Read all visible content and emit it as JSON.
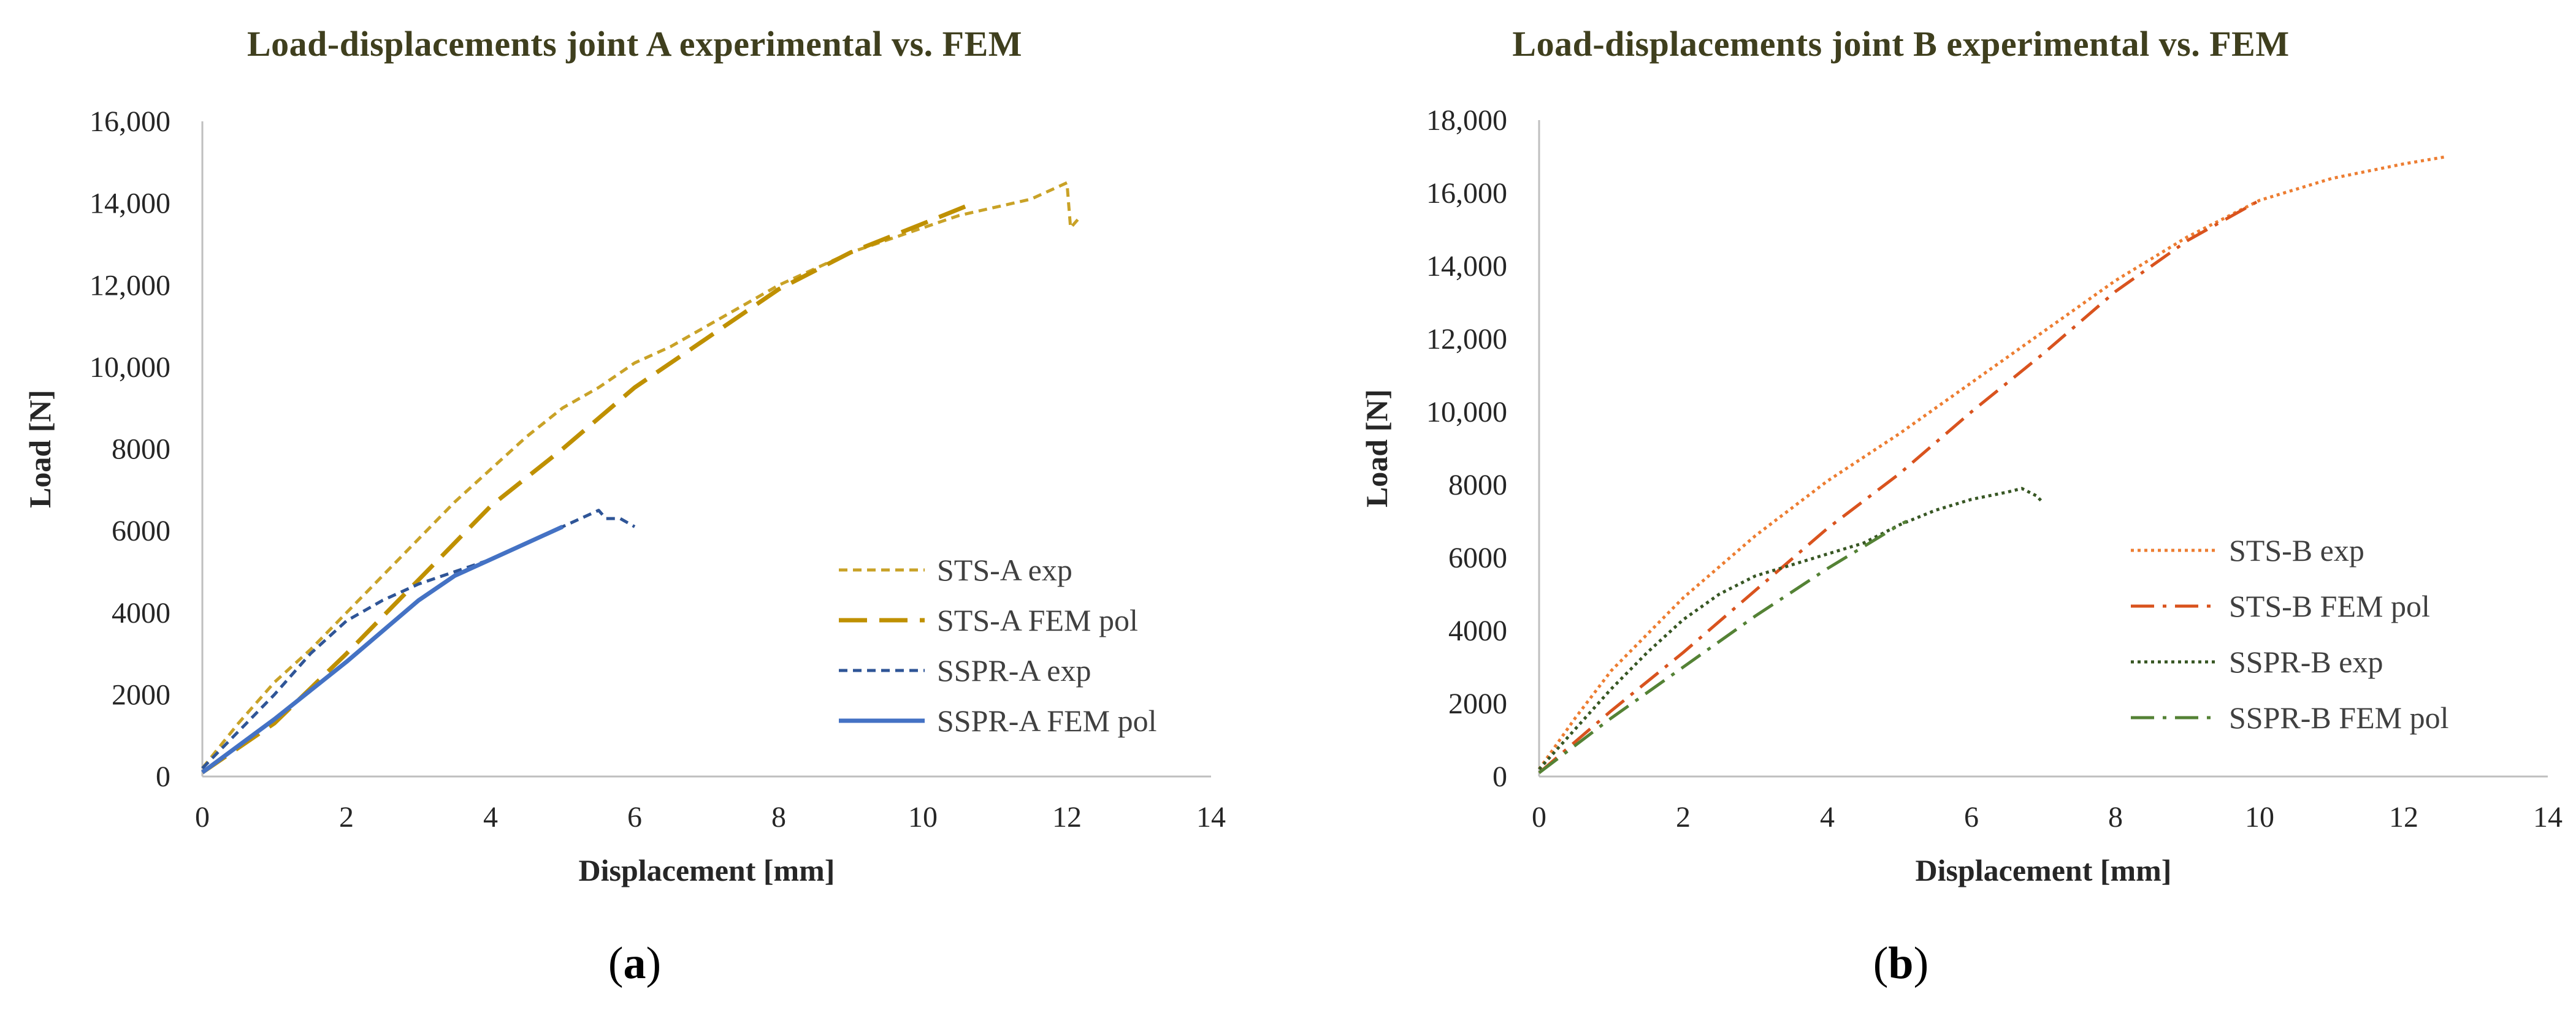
{
  "chart_data": [
    {
      "type": "line",
      "title": "Load-displacements  joint  A experimental  vs. FEM",
      "xlabel": "Displacement [mm]",
      "ylabel": "Load [N]",
      "xlim": [
        0,
        14
      ],
      "ylim": [
        0,
        16000
      ],
      "x_ticks": [
        0,
        2,
        4,
        6,
        8,
        10,
        12,
        14
      ],
      "x_tick_labels": [
        "0",
        "2",
        "4",
        "6",
        "8",
        "10",
        "12",
        "14"
      ],
      "y_ticks": [
        0,
        2000,
        4000,
        6000,
        8000,
        10000,
        12000,
        14000,
        16000
      ],
      "y_tick_labels": [
        "0",
        "2000",
        "4000",
        "6000",
        "8000",
        "10,000",
        "12,000",
        "14,000",
        "16,000"
      ],
      "grid": false,
      "legend_position": "right",
      "caption_label": "a",
      "series": [
        {
          "name": "STS-A exp",
          "color": "#c9a227",
          "style": "short-dash",
          "points": [
            [
              0,
              200
            ],
            [
              0.5,
              1300
            ],
            [
              1,
              2300
            ],
            [
              1.5,
              3100
            ],
            [
              2,
              4000
            ],
            [
              2.5,
              4900
            ],
            [
              3,
              5800
            ],
            [
              3.5,
              6700
            ],
            [
              4,
              7500
            ],
            [
              4.5,
              8300
            ],
            [
              5,
              9000
            ],
            [
              5.5,
              9500
            ],
            [
              6,
              10100
            ],
            [
              6.5,
              10500
            ],
            [
              7,
              11000
            ],
            [
              7.5,
              11500
            ],
            [
              8,
              12000
            ],
            [
              8.5,
              12400
            ],
            [
              9,
              12800
            ],
            [
              9.5,
              13100
            ],
            [
              10,
              13400
            ],
            [
              10.5,
              13700
            ],
            [
              11,
              13900
            ],
            [
              11.5,
              14100
            ],
            [
              12,
              14500
            ],
            [
              12.05,
              13400
            ],
            [
              12.15,
              13600
            ]
          ]
        },
        {
          "name": "STS-A FEM pol",
          "color": "#bf9000",
          "style": "long-dash",
          "points": [
            [
              0,
              100
            ],
            [
              1,
              1300
            ],
            [
              2,
              3000
            ],
            [
              3,
              4800
            ],
            [
              4,
              6600
            ],
            [
              5,
              8000
            ],
            [
              6,
              9500
            ],
            [
              7,
              10700
            ],
            [
              8,
              11900
            ],
            [
              9,
              12800
            ],
            [
              10,
              13500
            ],
            [
              10.7,
              14000
            ]
          ]
        },
        {
          "name": "SSPR-A exp",
          "color": "#2f5597",
          "style": "short-dash",
          "points": [
            [
              0,
              200
            ],
            [
              0.5,
              1100
            ],
            [
              1,
              2000
            ],
            [
              1.5,
              3000
            ],
            [
              2,
              3800
            ],
            [
              2.5,
              4300
            ],
            [
              3,
              4700
            ],
            [
              3.5,
              5000
            ],
            [
              4,
              5300
            ],
            [
              4.5,
              5700
            ],
            [
              5,
              6100
            ],
            [
              5.5,
              6500
            ],
            [
              5.6,
              6300
            ],
            [
              5.8,
              6300
            ],
            [
              6,
              6100
            ]
          ]
        },
        {
          "name": "SSPR-A FEM pol",
          "color": "#4472c4",
          "style": "solid",
          "points": [
            [
              0,
              100
            ],
            [
              1,
              1400
            ],
            [
              2,
              2800
            ],
            [
              3,
              4300
            ],
            [
              3.5,
              4900
            ],
            [
              4,
              5300
            ],
            [
              4.5,
              5700
            ],
            [
              5,
              6100
            ]
          ]
        }
      ]
    },
    {
      "type": "line",
      "title": "Load-displacements  joint  B experimental  vs. FEM",
      "xlabel": "Displacement [mm]",
      "ylabel": "Load [N]",
      "xlim": [
        0,
        14
      ],
      "ylim": [
        0,
        18000
      ],
      "x_ticks": [
        0,
        2,
        4,
        6,
        8,
        10,
        12,
        14
      ],
      "x_tick_labels": [
        "0",
        "2",
        "4",
        "6",
        "8",
        "10",
        "12",
        "14"
      ],
      "y_ticks": [
        0,
        2000,
        4000,
        6000,
        8000,
        10000,
        12000,
        14000,
        16000,
        18000
      ],
      "y_tick_labels": [
        "0",
        "2000",
        "4000",
        "6000",
        "8000",
        "10,000",
        "12,000",
        "14,000",
        "16,000",
        "18,000"
      ],
      "grid": false,
      "legend_position": "right",
      "caption_label": "b",
      "series": [
        {
          "name": "STS-B exp",
          "color": "#ed7d31",
          "style": "dotted",
          "points": [
            [
              0,
              200
            ],
            [
              0.5,
              1600
            ],
            [
              1,
              2900
            ],
            [
              2,
              4900
            ],
            [
              3,
              6600
            ],
            [
              4,
              8100
            ],
            [
              5,
              9400
            ],
            [
              6,
              10800
            ],
            [
              7,
              12200
            ],
            [
              8,
              13600
            ],
            [
              9,
              14800
            ],
            [
              10,
              15800
            ],
            [
              11,
              16400
            ],
            [
              12,
              16800
            ],
            [
              12.6,
              17000
            ]
          ]
        },
        {
          "name": "STS-B FEM pol",
          "color": "#d9531e",
          "style": "dash-dot",
          "points": [
            [
              0,
              100
            ],
            [
              1,
              1800
            ],
            [
              2,
              3400
            ],
            [
              3,
              5100
            ],
            [
              4,
              6800
            ],
            [
              5,
              8300
            ],
            [
              6,
              10000
            ],
            [
              7,
              11600
            ],
            [
              8,
              13300
            ],
            [
              9,
              14700
            ],
            [
              10,
              15800
            ]
          ]
        },
        {
          "name": "SSPR-B exp",
          "color": "#375623",
          "style": "dotted",
          "points": [
            [
              0,
              200
            ],
            [
              0.5,
              1300
            ],
            [
              1,
              2400
            ],
            [
              1.5,
              3400
            ],
            [
              2,
              4300
            ],
            [
              2.5,
              5000
            ],
            [
              3,
              5500
            ],
            [
              3.5,
              5800
            ],
            [
              4,
              6100
            ],
            [
              4.5,
              6400
            ],
            [
              5,
              6900
            ],
            [
              5.5,
              7300
            ],
            [
              6,
              7600
            ],
            [
              6.5,
              7800
            ],
            [
              6.7,
              7900
            ],
            [
              6.9,
              7700
            ],
            [
              7,
              7500
            ]
          ]
        },
        {
          "name": "SSPR-B FEM pol",
          "color": "#548235",
          "style": "dash-dot",
          "points": [
            [
              0,
              100
            ],
            [
              1,
              1600
            ],
            [
              2,
              3000
            ],
            [
              3,
              4400
            ],
            [
              4,
              5700
            ],
            [
              5,
              6900
            ],
            [
              5.1,
              7000
            ]
          ]
        }
      ]
    }
  ]
}
